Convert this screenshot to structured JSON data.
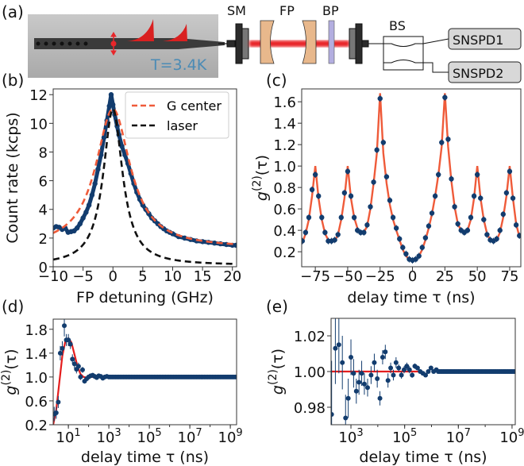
{
  "panel_labels": {
    "a": "(a)",
    "b": "(b)",
    "c": "(c)",
    "d": "(d)",
    "e": "(e)"
  },
  "setup": {
    "temperature": "T=3.4K",
    "sm": "SM",
    "fp": "FP",
    "bp": "BP",
    "bs": "BS",
    "detector1": "SNSPD1",
    "detector2": "SNSPD2",
    "colors": {
      "beam": "#e8262a",
      "lens": "#e8b88c",
      "filter": "#b3aee0",
      "temp_text": "#4b8bb5"
    }
  },
  "chart_data": [
    {
      "id": "b",
      "type": "line",
      "xlabel": "FP  detuning (GHz)",
      "ylabel": "Count rate (kcps)",
      "xlim": [
        -10,
        20.7
      ],
      "ylim": [
        0,
        12.4
      ],
      "xticks": [
        {
          "v": -10,
          "label": "−10"
        },
        {
          "v": -5,
          "label": "−5"
        },
        {
          "v": 0,
          "label": "0"
        },
        {
          "v": 5,
          "label": "5"
        },
        {
          "v": 10,
          "label": "10"
        },
        {
          "v": 15,
          "label": "15"
        },
        {
          "v": 20,
          "label": "20"
        }
      ],
      "yticks": [
        {
          "v": 0,
          "label": "0"
        },
        {
          "v": 2,
          "label": "2"
        },
        {
          "v": 4,
          "label": "4"
        },
        {
          "v": 6,
          "label": "6"
        },
        {
          "v": 8,
          "label": "8"
        },
        {
          "v": 10,
          "label": "10"
        },
        {
          "v": 12,
          "label": "12"
        }
      ],
      "legend": {
        "placement": "top-right",
        "entries": [
          "G center",
          "laser"
        ]
      },
      "points": [
        [
          -10,
          2.7
        ],
        [
          -9.5,
          2.8
        ],
        [
          -9,
          2.75
        ],
        [
          -8.5,
          2.6
        ],
        [
          -8,
          2.7
        ],
        [
          -7.5,
          2.4
        ],
        [
          -7,
          2.45
        ],
        [
          -6.5,
          2.5
        ],
        [
          -6,
          2.7
        ],
        [
          -5.5,
          3.0
        ],
        [
          -5,
          3.4
        ],
        [
          -4.5,
          3.8
        ],
        [
          -4,
          4.3
        ],
        [
          -3.5,
          5.0
        ],
        [
          -3,
          5.8
        ],
        [
          -2.5,
          6.8
        ],
        [
          -2,
          7.8
        ],
        [
          -1.5,
          9.0
        ],
        [
          -1,
          10.2
        ],
        [
          -0.6,
          11.2
        ],
        [
          -0.3,
          12.0
        ],
        [
          0,
          11.3
        ],
        [
          0.3,
          10.6
        ],
        [
          0.7,
          9.8
        ],
        [
          1,
          9.2
        ],
        [
          1.5,
          8.4
        ],
        [
          2,
          7.8
        ],
        [
          2.5,
          7.2
        ],
        [
          3,
          6.5
        ],
        [
          3.5,
          5.8
        ],
        [
          4,
          5.2
        ],
        [
          4.5,
          4.7
        ],
        [
          5,
          4.3
        ],
        [
          5.5,
          4.0
        ],
        [
          6,
          3.7
        ],
        [
          6.5,
          3.4
        ],
        [
          7,
          3.2
        ],
        [
          7.5,
          3.0
        ],
        [
          8,
          2.8
        ],
        [
          8.5,
          2.65
        ],
        [
          9,
          2.5
        ],
        [
          9.5,
          2.4
        ],
        [
          10,
          2.3
        ],
        [
          11,
          2.1
        ],
        [
          12,
          2.0
        ],
        [
          13,
          1.9
        ],
        [
          14,
          1.8
        ],
        [
          15,
          1.75
        ],
        [
          16,
          1.7
        ],
        [
          17,
          1.65
        ],
        [
          18,
          1.6
        ],
        [
          19,
          1.55
        ],
        [
          20,
          1.5
        ],
        [
          20.6,
          1.5
        ]
      ],
      "fits": [
        {
          "name": "G center",
          "model": "lorentzian",
          "amplitude": 9.7,
          "center": 0,
          "hwhm": 3.5,
          "offset": 1.3,
          "color": "#ef5b3a"
        },
        {
          "name": "laser",
          "model": "lorentzian",
          "amplitude": 10.9,
          "center": 0,
          "hwhm": 1.95,
          "offset": 0.1,
          "color": "#111111"
        }
      ],
      "point_color": "#123c6e"
    },
    {
      "id": "c",
      "type": "scatter",
      "xlabel": "delay time τ (ns)",
      "ylabel": {
        "main": "g",
        "sup": "(2)",
        "arg": "(τ)"
      },
      "xlim": [
        -85.5,
        83.6
      ],
      "ylim": [
        0.06,
        1.72
      ],
      "xticks": [
        {
          "v": -75,
          "label": "−75"
        },
        {
          "v": -50,
          "label": "−50"
        },
        {
          "v": -25,
          "label": "−25"
        },
        {
          "v": 0,
          "label": "0"
        },
        {
          "v": 25,
          "label": "25"
        },
        {
          "v": 50,
          "label": "50"
        },
        {
          "v": 75,
          "label": "75"
        }
      ],
      "yticks": [
        {
          "v": 0.2,
          "label": "0.2"
        },
        {
          "v": 0.4,
          "label": "0.4"
        },
        {
          "v": 0.6,
          "label": "0.6"
        },
        {
          "v": 0.8,
          "label": "0.8"
        },
        {
          "v": 1.0,
          "label": "1.0"
        },
        {
          "v": 1.2,
          "label": "1.2"
        },
        {
          "v": 1.4,
          "label": "1.4"
        },
        {
          "v": 1.6,
          "label": "1.6"
        }
      ],
      "x": [
        -85,
        -82.5,
        -80,
        -77.5,
        -75,
        -72.5,
        -70,
        -67.5,
        -65,
        -62.5,
        -60,
        -57.5,
        -55,
        -52.5,
        -50,
        -47.5,
        -45,
        -42.5,
        -40,
        -37.5,
        -35,
        -32.5,
        -30,
        -27.5,
        -25,
        -22.5,
        -20,
        -17.5,
        -15,
        -12.5,
        -10,
        -7.5,
        -5,
        -2.5,
        0,
        2.5,
        5,
        7.5,
        10,
        12.5,
        15,
        17.5,
        20,
        22.5,
        25,
        27.5,
        30,
        32.5,
        35,
        37.5,
        40,
        42.5,
        45,
        47.5,
        50,
        52.5,
        55,
        57.5,
        60,
        62.5,
        65,
        67.5,
        70,
        72.5,
        75,
        77.5,
        80,
        82.5
      ],
      "y": [
        0.3,
        0.38,
        0.52,
        0.78,
        0.92,
        0.72,
        0.52,
        0.38,
        0.3,
        0.3,
        0.31,
        0.36,
        0.52,
        0.75,
        0.95,
        0.72,
        0.52,
        0.4,
        0.38,
        0.38,
        0.45,
        0.62,
        0.85,
        1.15,
        1.63,
        1.22,
        0.9,
        0.68,
        0.52,
        0.42,
        0.32,
        0.24,
        0.18,
        0.13,
        0.12,
        0.13,
        0.16,
        0.24,
        0.33,
        0.44,
        0.56,
        0.72,
        0.92,
        1.22,
        1.64,
        1.25,
        0.88,
        0.62,
        0.46,
        0.4,
        0.38,
        0.4,
        0.52,
        0.72,
        0.92,
        0.7,
        0.5,
        0.36,
        0.31,
        0.3,
        0.32,
        0.4,
        0.55,
        0.75,
        0.95,
        0.7,
        0.45,
        0.35
      ],
      "fit_y": [
        0.28,
        0.37,
        0.5,
        0.72,
        1.0,
        0.7,
        0.5,
        0.37,
        0.31,
        0.29,
        0.3,
        0.36,
        0.5,
        0.7,
        1.0,
        0.7,
        0.52,
        0.42,
        0.38,
        0.38,
        0.44,
        0.6,
        0.84,
        1.12,
        1.68,
        1.12,
        0.84,
        0.64,
        0.5,
        0.4,
        0.31,
        0.22,
        0.16,
        0.13,
        0.12,
        0.13,
        0.16,
        0.22,
        0.31,
        0.42,
        0.55,
        0.72,
        0.92,
        1.18,
        1.68,
        1.18,
        0.86,
        0.62,
        0.46,
        0.4,
        0.38,
        0.4,
        0.5,
        0.7,
        1.0,
        0.7,
        0.5,
        0.37,
        0.31,
        0.29,
        0.31,
        0.38,
        0.52,
        0.72,
        1.0,
        0.7,
        0.46,
        0.34
      ],
      "point_color": "#123c6e",
      "fit_color": "#ef5b3a"
    },
    {
      "id": "d",
      "type": "scatter",
      "xscale": "log",
      "xlabel": "delay time τ (ns)",
      "ylabel": {
        "main": "g",
        "sup": "(2)",
        "arg": "(τ)"
      },
      "xlim_log10": [
        0.25,
        9.31
      ],
      "ylim": [
        0.2,
        1.97
      ],
      "xticks": [
        {
          "v": 1,
          "base": "10",
          "exp": "1"
        },
        {
          "v": 3,
          "base": "10",
          "exp": "3"
        },
        {
          "v": 5,
          "base": "10",
          "exp": "5"
        },
        {
          "v": 7,
          "base": "10",
          "exp": "7"
        },
        {
          "v": 9,
          "base": "10",
          "exp": "9"
        }
      ],
      "yticks": [
        {
          "v": 0.2,
          "label": "0.2"
        },
        {
          "v": 0.6,
          "label": "0.6"
        },
        {
          "v": 1.0,
          "label": "1.0"
        },
        {
          "v": 1.4,
          "label": "1.4"
        },
        {
          "v": 1.8,
          "label": "1.8"
        }
      ],
      "points_log10x_y_err": [
        [
          0.3,
          0.38,
          0.12
        ],
        [
          0.4,
          0.4,
          0.1
        ],
        [
          0.5,
          0.58,
          0.1
        ],
        [
          0.6,
          1.4,
          0.12
        ],
        [
          0.7,
          1.48,
          0.12
        ],
        [
          0.8,
          1.86,
          0.18
        ],
        [
          0.9,
          1.62,
          0.1
        ],
        [
          1.0,
          1.62,
          0.1
        ],
        [
          1.1,
          1.55,
          0.08
        ],
        [
          1.2,
          1.3,
          0.08
        ],
        [
          1.3,
          1.22,
          0.08
        ],
        [
          1.4,
          1.13,
          0.07
        ],
        [
          1.5,
          1.18,
          0.06
        ],
        [
          1.6,
          1.0,
          0.05
        ],
        [
          1.7,
          1.12,
          0.05
        ],
        [
          1.8,
          0.93,
          0.04
        ],
        [
          1.9,
          0.97,
          0.03
        ],
        [
          2.0,
          1.0,
          0.03
        ],
        [
          2.1,
          1.02,
          0.02
        ],
        [
          2.2,
          1.03,
          0.02
        ],
        [
          2.3,
          1.01,
          0.02
        ],
        [
          2.4,
          0.99,
          0.02
        ],
        [
          2.5,
          1.02,
          0.02
        ],
        [
          2.6,
          1.01,
          0.01
        ],
        [
          2.7,
          0.98,
          0.01
        ],
        [
          2.8,
          1.0,
          0.01
        ],
        [
          2.9,
          1.01,
          0.01
        ]
      ],
      "tail": {
        "from_log10": 3.0,
        "to_log10": 9.3,
        "step": 0.08,
        "value": 1.0
      },
      "fit_log10x_y": [
        [
          0.25,
          0.2
        ],
        [
          0.4,
          0.45
        ],
        [
          0.55,
          0.9
        ],
        [
          0.7,
          1.35
        ],
        [
          0.85,
          1.6
        ],
        [
          1.0,
          1.65
        ],
        [
          1.15,
          1.58
        ],
        [
          1.3,
          1.38
        ],
        [
          1.45,
          1.18
        ],
        [
          1.6,
          1.05
        ],
        [
          1.75,
          1.0
        ],
        [
          1.9,
          0.99
        ],
        [
          2.1,
          1.0
        ],
        [
          9.31,
          1.0
        ]
      ],
      "point_color": "#123c6e",
      "fit_color": "#e41e1e"
    },
    {
      "id": "e",
      "type": "scatter",
      "xscale": "log",
      "xlabel": "delay time τ (ns)",
      "ylabel": {
        "main": "g",
        "sup": "(2)",
        "arg": "(τ)"
      },
      "xlim_log10": [
        2.26,
        9.12
      ],
      "ylim": [
        0.9702,
        1.0298
      ],
      "xticks": [
        {
          "v": 3,
          "base": "10",
          "exp": "3"
        },
        {
          "v": 5,
          "base": "10",
          "exp": "5"
        },
        {
          "v": 7,
          "base": "10",
          "exp": "7"
        },
        {
          "v": 9,
          "base": "10",
          "exp": "9"
        }
      ],
      "yticks": [
        {
          "v": 0.98,
          "label": "0.98"
        },
        {
          "v": 1.0,
          "label": "1.00"
        },
        {
          "v": 1.02,
          "label": "1.02"
        }
      ],
      "points_log10x_y_err": [
        [
          2.28,
          0.976,
          0.03
        ],
        [
          2.42,
          1.013,
          0.02
        ],
        [
          2.55,
          1.015,
          0.016
        ],
        [
          2.68,
          1.005,
          0.015
        ],
        [
          2.8,
          0.974,
          0.013
        ],
        [
          2.9,
          0.985,
          0.011
        ],
        [
          3.0,
          1.008,
          0.01
        ],
        [
          3.1,
          0.999,
          0.008
        ],
        [
          3.2,
          0.989,
          0.007
        ],
        [
          3.3,
          0.994,
          0.007
        ],
        [
          3.4,
          0.999,
          0.007
        ],
        [
          3.5,
          0.993,
          0.006
        ],
        [
          3.62,
          0.991,
          0.005
        ],
        [
          3.75,
          0.998,
          0.005
        ],
        [
          3.87,
          1.005,
          0.005
        ],
        [
          3.98,
          0.996,
          0.005
        ],
        [
          4.08,
          0.985,
          0.004
        ],
        [
          4.18,
          1.008,
          0.004
        ],
        [
          4.28,
          1.011,
          0.004
        ],
        [
          4.38,
          0.995,
          0.004
        ],
        [
          4.48,
          1.002,
          0.003
        ],
        [
          4.58,
          0.998,
          0.003
        ],
        [
          4.68,
          1.005,
          0.003
        ],
        [
          4.78,
          1.002,
          0.002
        ],
        [
          4.88,
          0.998,
          0.002
        ],
        [
          4.98,
          1.001,
          0.002
        ],
        [
          5.08,
          1.003,
          0.002
        ],
        [
          5.18,
          1.001,
          0.002
        ],
        [
          5.28,
          0.998,
          0.0015
        ],
        [
          5.38,
          1.003,
          0.0015
        ],
        [
          5.48,
          1.002,
          0.001
        ],
        [
          5.58,
          1.0,
          0.001
        ],
        [
          5.68,
          0.999,
          0.001
        ],
        [
          5.78,
          0.998,
          0.001
        ],
        [
          5.88,
          1.0,
          0.001
        ],
        [
          5.98,
          1.002,
          0.001
        ],
        [
          6.08,
          1.0,
          0.001
        ],
        [
          6.18,
          1.001,
          0.001
        ]
      ],
      "tail": {
        "from_log10": 6.25,
        "to_log10": 9.12,
        "step": 0.05,
        "value": 1.0
      },
      "fit_log10x_y": [
        [
          2.26,
          1.0
        ],
        [
          5.5,
          1.0
        ]
      ],
      "point_color": "#123c6e",
      "fit_color": "#e41e1e"
    }
  ]
}
